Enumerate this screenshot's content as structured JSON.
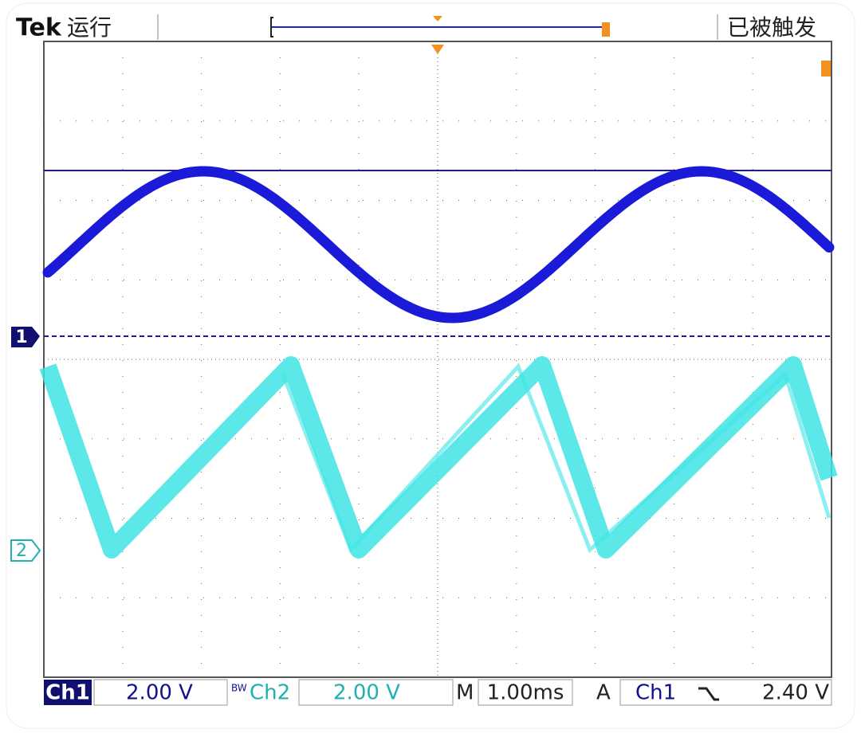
{
  "header": {
    "brand": "Tek",
    "run_state": "运行",
    "trigger_state": "已被触发"
  },
  "markers": {
    "ch1": "1",
    "ch2": "2"
  },
  "footer": {
    "ch1_label": "Ch1",
    "ch1_scale": "2.00 V",
    "bw_flag": "BW",
    "ch2_label": "Ch2",
    "ch2_scale": "2.00 V",
    "time_label": "M",
    "time_scale": "1.00ms",
    "trigger_label": "A",
    "trigger_source": "Ch1",
    "trigger_level": "2.40 V"
  }
}
